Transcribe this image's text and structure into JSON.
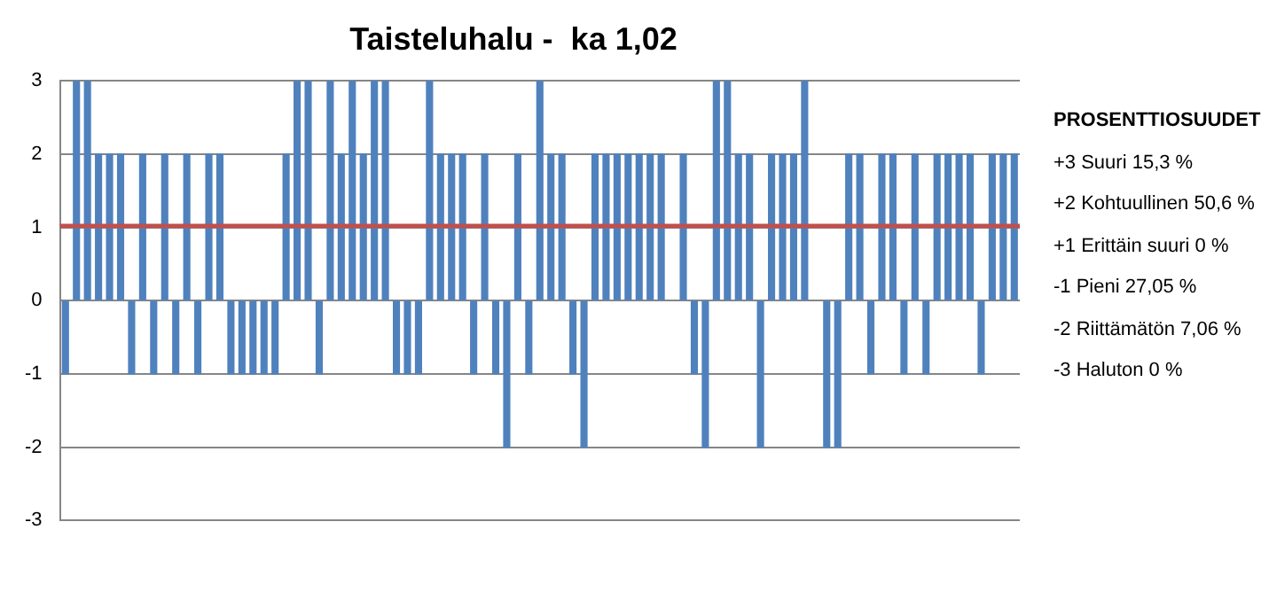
{
  "chart_data": {
    "type": "bar",
    "title": "Taisteluhalu -  ka 1,02",
    "categories": [
      null,
      null,
      null,
      null,
      null,
      null,
      null,
      null,
      null,
      null,
      null,
      null,
      null,
      null,
      null,
      null,
      null,
      null,
      null,
      null,
      null,
      null,
      null,
      null,
      null,
      null,
      null,
      null,
      null,
      null,
      null,
      null,
      null,
      null,
      null,
      null,
      null,
      null,
      null,
      null,
      null,
      null,
      null,
      null,
      null,
      null,
      null,
      null,
      null,
      null,
      null,
      null,
      null,
      null,
      null,
      null,
      null,
      null,
      null,
      null,
      null,
      null,
      null,
      null,
      null,
      null,
      null,
      null,
      null,
      null,
      null,
      null,
      null,
      null,
      null,
      null,
      null,
      null,
      null,
      null,
      null,
      null,
      null,
      null,
      null,
      null,
      null
    ],
    "values": [
      -1,
      3,
      3,
      2,
      2,
      2,
      -1,
      2,
      -1,
      2,
      -1,
      2,
      -1,
      2,
      2,
      -1,
      -1,
      -1,
      -1,
      -1,
      2,
      3,
      3,
      -1,
      3,
      2,
      3,
      2,
      3,
      3,
      -1,
      -1,
      -1,
      3,
      2,
      2,
      2,
      -1,
      2,
      -1,
      -2,
      2,
      -1,
      3,
      2,
      2,
      -1,
      -2,
      2,
      2,
      2,
      2,
      2,
      2,
      2,
      null,
      2,
      -1,
      -2,
      3,
      3,
      2,
      2,
      -2,
      2,
      2,
      2,
      3,
      null,
      -2,
      -2,
      2,
      2,
      -1,
      2,
      2,
      -1,
      2,
      -1,
      2,
      2,
      2,
      2,
      -1,
      2,
      2,
      2
    ],
    "color": "#4f81bd",
    "ylim": [
      -3,
      3
    ],
    "yticks": [
      -3,
      -2,
      -1,
      0,
      1,
      2,
      3
    ],
    "grid": "y",
    "ref_lines": [
      {
        "axis": "y",
        "value": 1.02,
        "color": "#c0504d"
      }
    ],
    "annotations": [
      "PROSENTTIOSUUDET",
      "+3 Suuri 15,3 %",
      "+2 Kohtuullinen 50,6 %",
      "+1 Erittäin suuri 0 %",
      "-1 Pieni 27,05 %",
      "-2 Riittämätön 7,06 %",
      "-3 Haluton 0 %"
    ]
  }
}
